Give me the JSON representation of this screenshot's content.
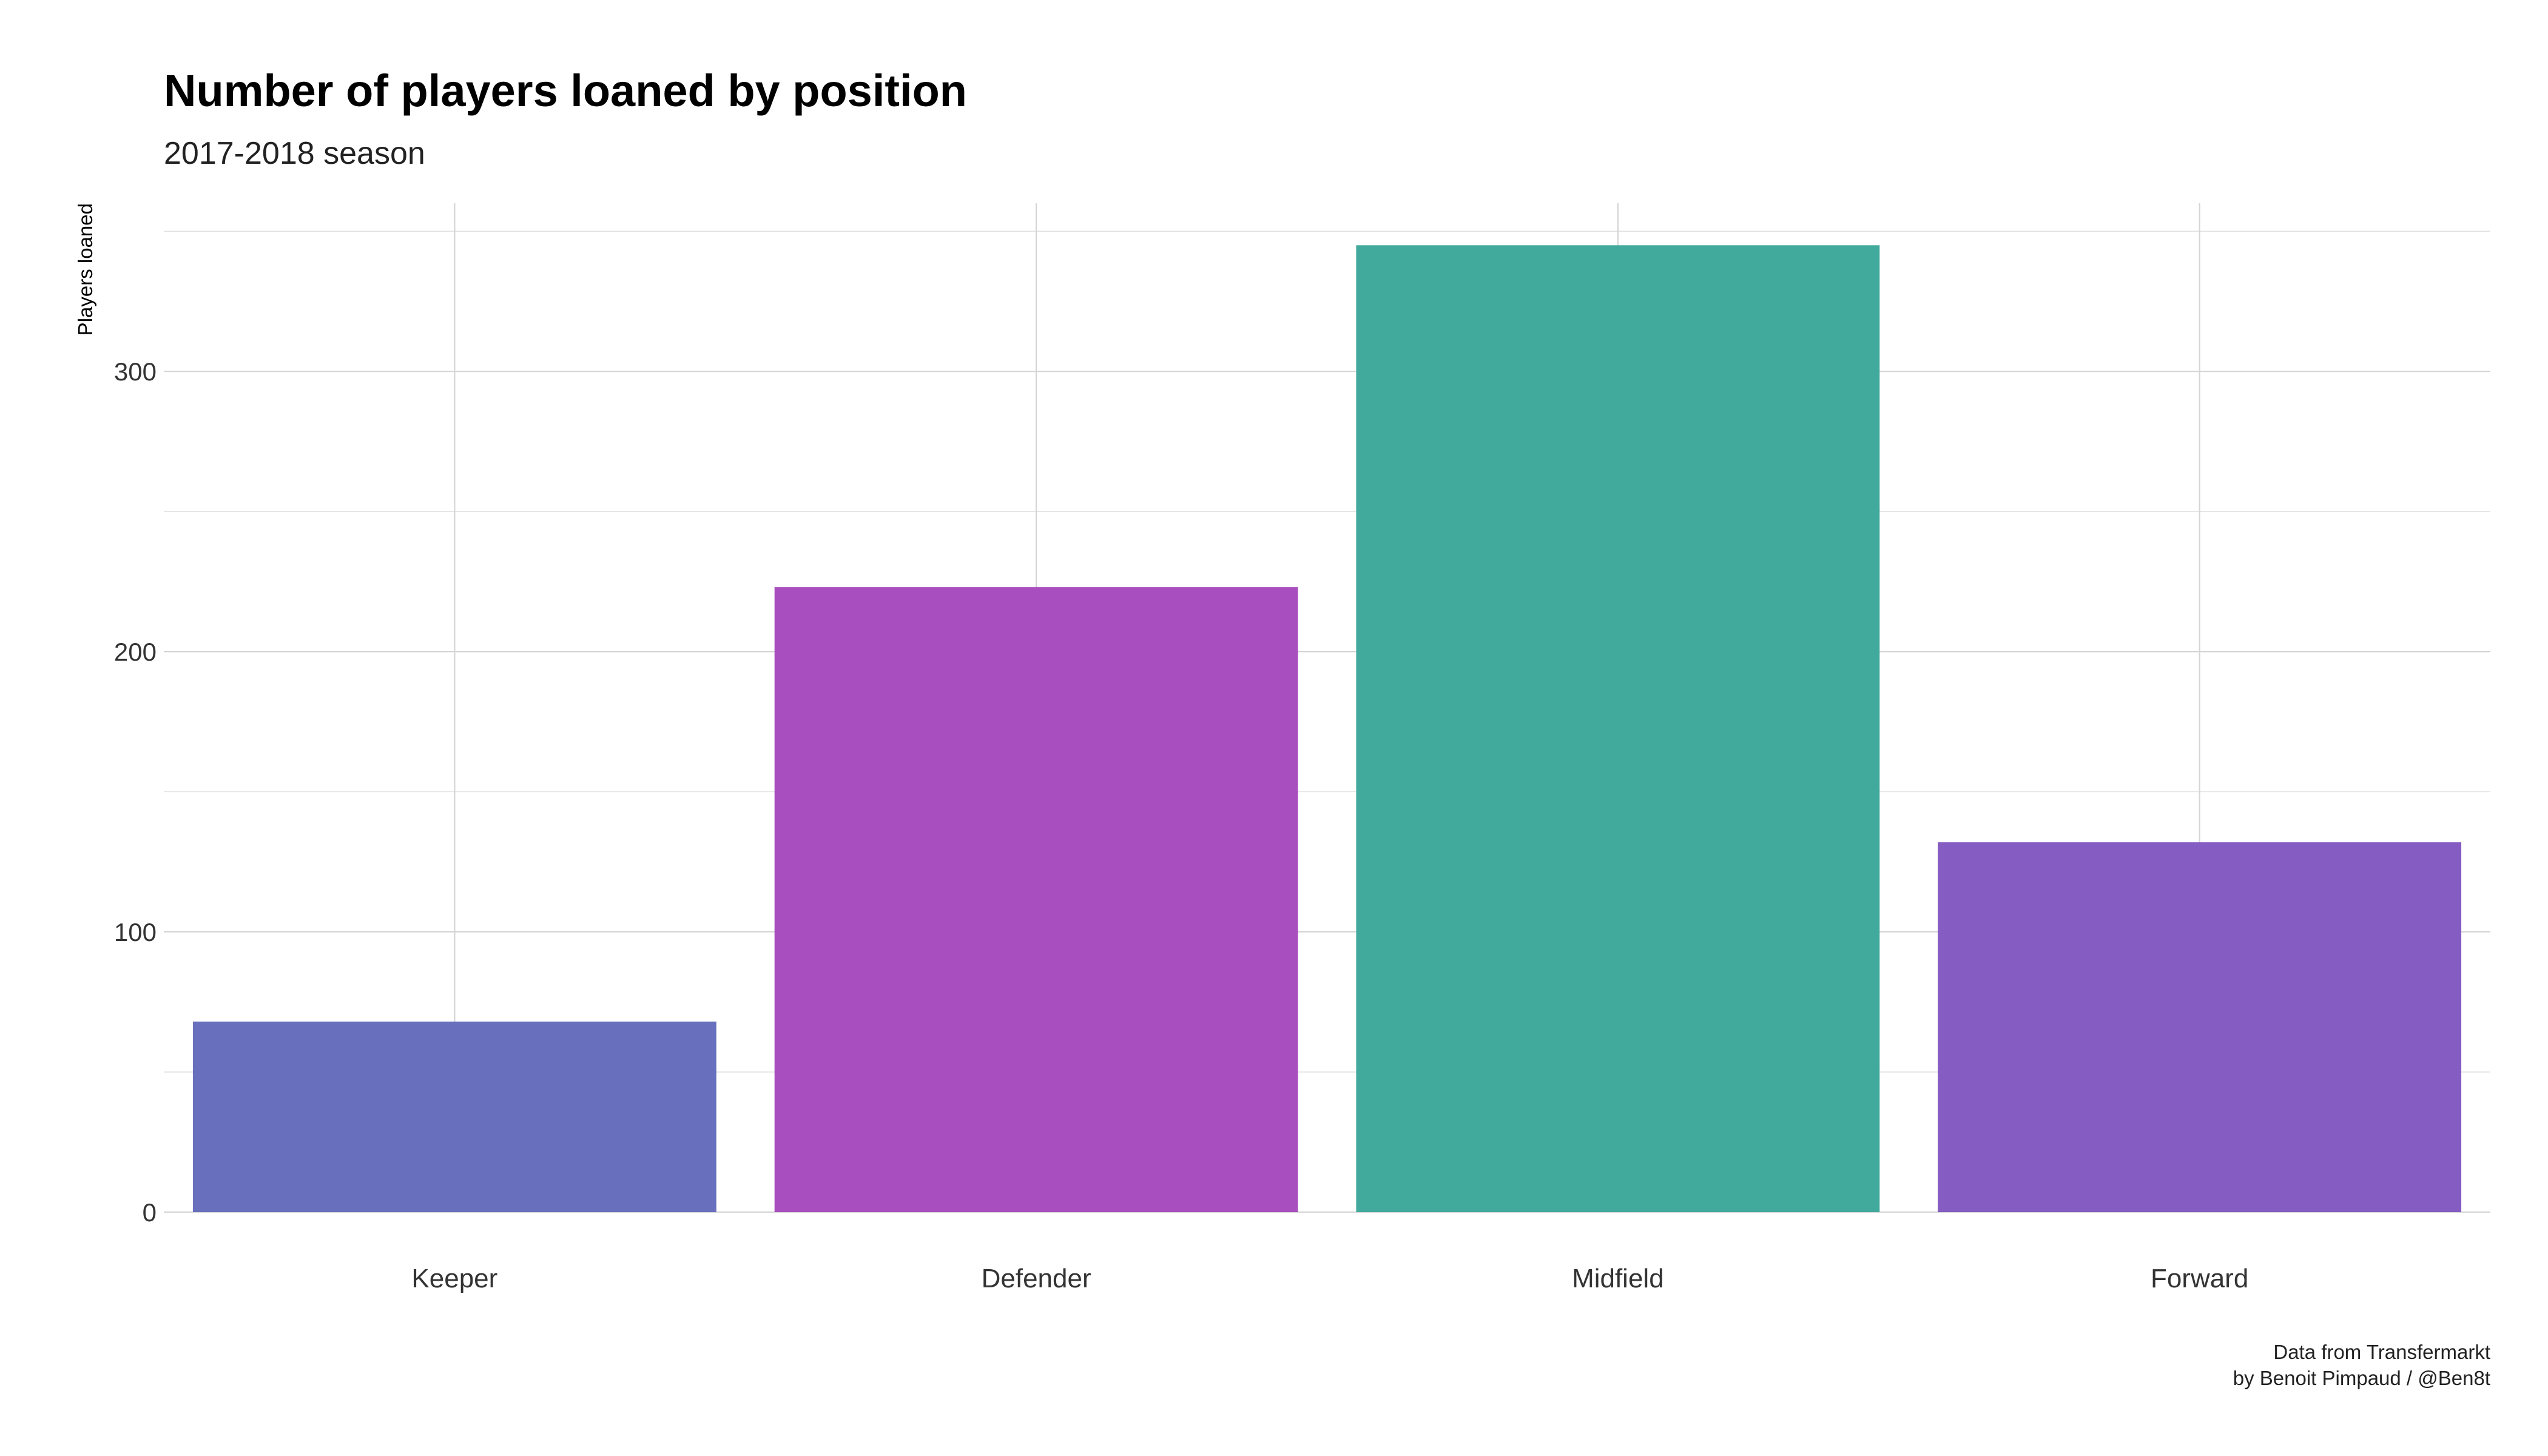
{
  "chart_data": {
    "type": "bar",
    "title": "Number of players loaned by position",
    "subtitle": "2017-2018 season",
    "xlabel": "",
    "ylabel": "Players loaned",
    "categories": [
      "Keeper",
      "Defender",
      "Midfield",
      "Forward"
    ],
    "values": [
      68,
      223,
      345,
      132
    ],
    "colors": [
      "#6870BE",
      "#A84EBE",
      "#42AA9C",
      "#845CC2"
    ],
    "ylim": [
      0,
      360
    ],
    "yticks": [
      0,
      100,
      200,
      300
    ],
    "grid": true,
    "legend": "none",
    "caption": [
      "Data from Transfermarkt",
      "by Benoit Pimpaud / @Ben8t"
    ]
  }
}
